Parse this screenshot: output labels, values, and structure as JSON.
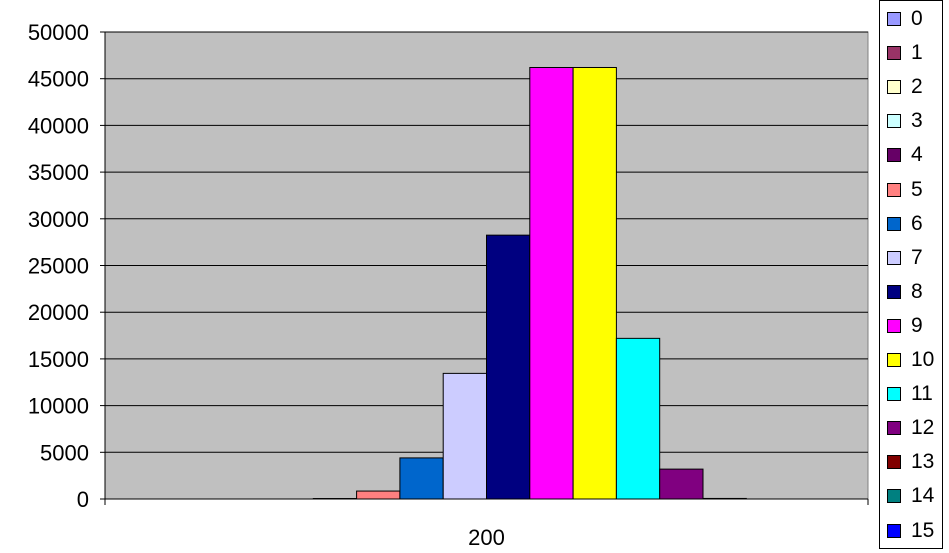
{
  "chart_data": {
    "type": "bar",
    "title": "",
    "xlabel": "",
    "ylabel": "",
    "categories": [
      "200"
    ],
    "ylim": [
      0,
      50000
    ],
    "yticks": [
      "0",
      "5000",
      "10000",
      "15000",
      "20000",
      "25000",
      "30000",
      "35000",
      "40000",
      "45000",
      "50000"
    ],
    "grid": true,
    "legend_position": "right",
    "plot_background": "#c0c0c0",
    "series": [
      {
        "name": "0",
        "color": "#9999ff",
        "values": [
          0
        ]
      },
      {
        "name": "1",
        "color": "#993366",
        "values": [
          0
        ]
      },
      {
        "name": "2",
        "color": "#ffffcc",
        "values": [
          0
        ]
      },
      {
        "name": "3",
        "color": "#ccffff",
        "values": [
          0
        ]
      },
      {
        "name": "4",
        "color": "#660066",
        "values": [
          50
        ]
      },
      {
        "name": "5",
        "color": "#ff8080",
        "values": [
          850
        ]
      },
      {
        "name": "6",
        "color": "#0066cc",
        "values": [
          4400
        ]
      },
      {
        "name": "7",
        "color": "#ccccff",
        "values": [
          13450
        ]
      },
      {
        "name": "8",
        "color": "#000080",
        "values": [
          28250
        ]
      },
      {
        "name": "9",
        "color": "#ff00ff",
        "values": [
          46200
        ]
      },
      {
        "name": "10",
        "color": "#ffff00",
        "values": [
          46200
        ]
      },
      {
        "name": "11",
        "color": "#00ffff",
        "values": [
          17200
        ]
      },
      {
        "name": "12",
        "color": "#800080",
        "values": [
          3200
        ]
      },
      {
        "name": "13",
        "color": "#800000",
        "values": [
          60
        ]
      },
      {
        "name": "14",
        "color": "#008080",
        "values": [
          0
        ]
      },
      {
        "name": "15",
        "color": "#0000ff",
        "values": [
          0
        ]
      }
    ]
  }
}
